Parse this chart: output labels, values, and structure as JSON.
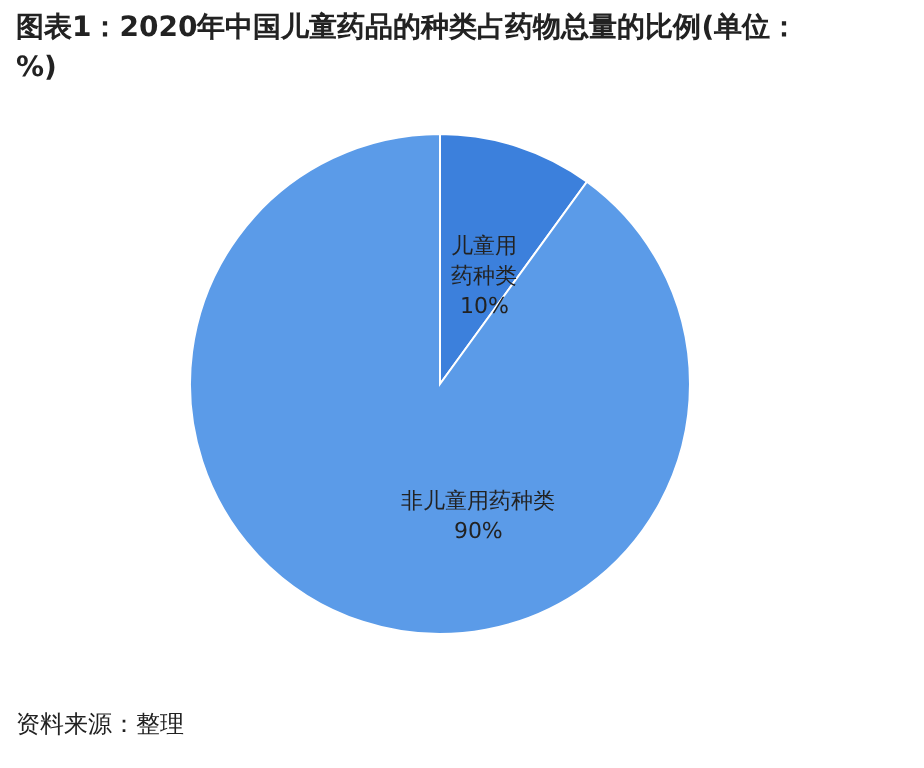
{
  "chart_data": {
    "type": "pie",
    "title": "图表1：2020年中国儿童药品的种类占药物总量的比例(单位：%)",
    "categories": [
      "儿童用药种类",
      "非儿童用药种类"
    ],
    "values": [
      10,
      90
    ],
    "colors": [
      "#3c80dc",
      "#5b9be8"
    ],
    "value_labels": [
      "10%",
      "90%"
    ],
    "annotations": [
      "资料来源：整理"
    ]
  }
}
